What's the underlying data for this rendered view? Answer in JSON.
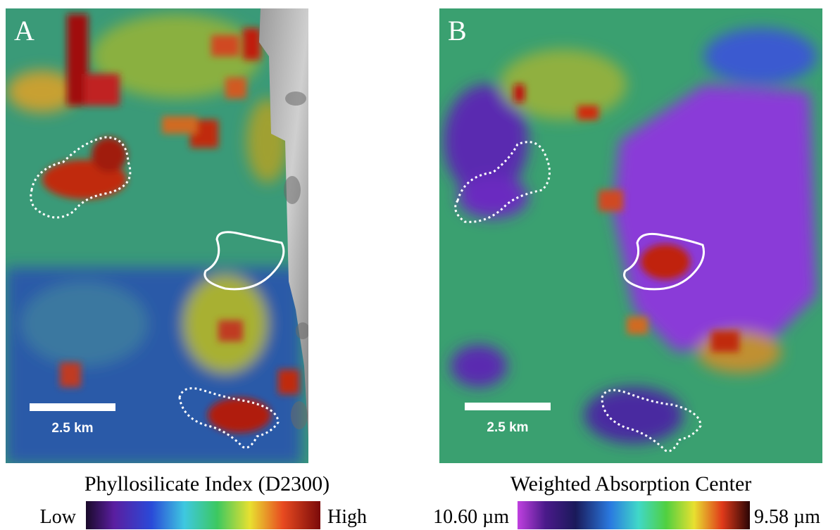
{
  "panels": [
    {
      "label": "A",
      "scale_label": "2.5 km",
      "colorbar_title": "Phyllosilicate Index (D2300)",
      "colorbar_min": "Low",
      "colorbar_max": "High"
    },
    {
      "label": "B",
      "scale_label": "2.5 km",
      "colorbar_title": "Weighted Absorption Center",
      "colorbar_min": "10.60 µm",
      "colorbar_max": "9.58 µm"
    }
  ]
}
